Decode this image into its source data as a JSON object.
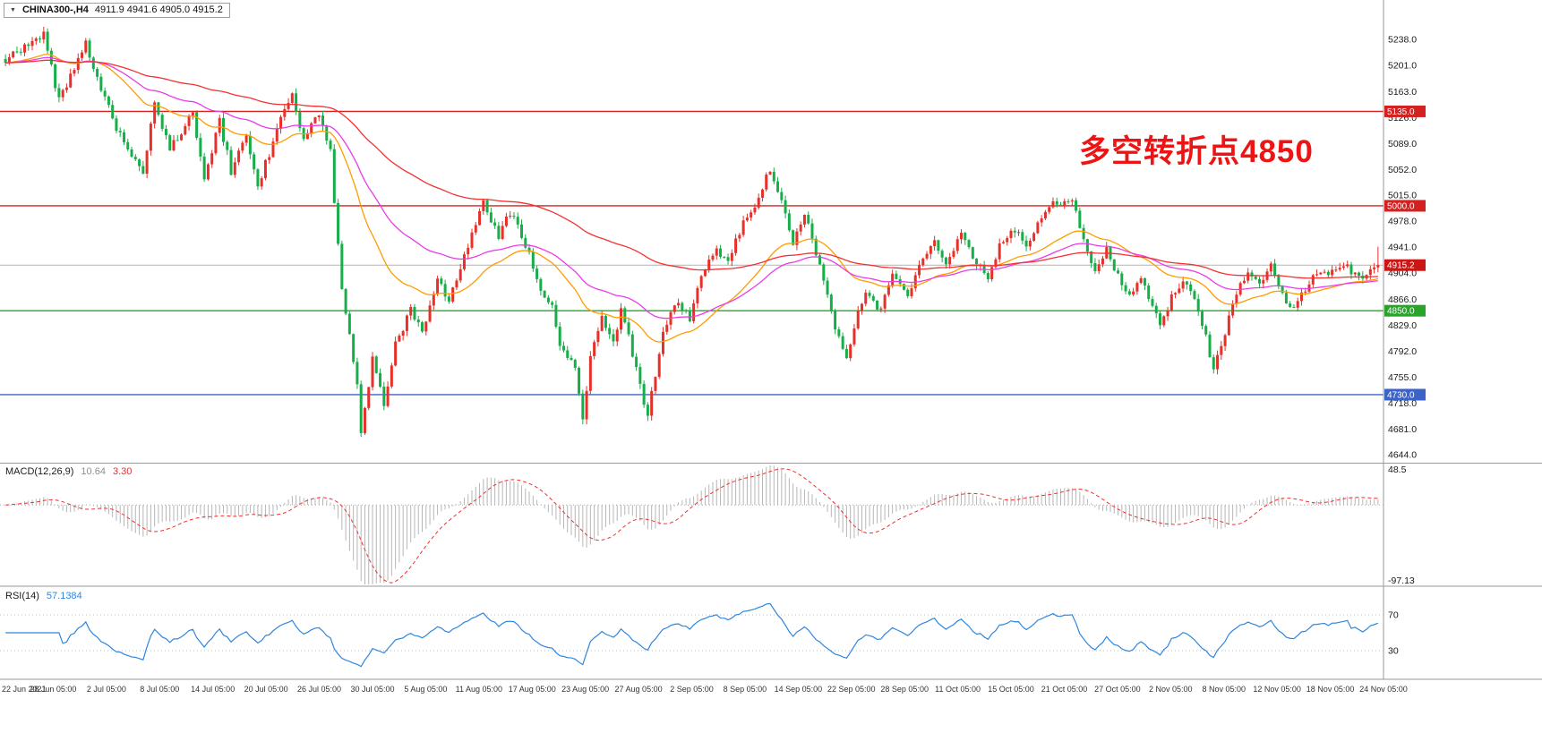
{
  "window": {
    "bg": "#ffffff"
  },
  "header": {
    "collapse_icon": "▼",
    "symbol": "CHINA300-,H4",
    "ohlc_text": "4911.9 4941.6 4905.0 4915.2"
  },
  "annotation": {
    "text": "多空转折点4850",
    "color": "#ee1414"
  },
  "price_axis": {
    "labels": [
      "5238.0",
      "5201.0",
      "5163.0",
      "5126.0",
      "5089.0",
      "5052.0",
      "5015.0",
      "4978.0",
      "4941.0",
      "4904.0",
      "4866.0",
      "4829.0",
      "4792.0",
      "4755.0",
      "4718.0",
      "4681.0",
      "4644.0"
    ],
    "top_value": 5284,
    "bottom_value": 4634
  },
  "time_axis": {
    "labels": [
      "22 Jun 2021",
      "28 Jun 05:00",
      "2 Jul 05:00",
      "8 Jul 05:00",
      "14 Jul 05:00",
      "20 Jul 05:00",
      "26 Jul 05:00",
      "30 Jul 05:00",
      "5 Aug 05:00",
      "11 Aug 05:00",
      "17 Aug 05:00",
      "23 Aug 05:00",
      "27 Aug 05:00",
      "2 Sep 05:00",
      "8 Sep 05:00",
      "14 Sep 05:00",
      "22 Sep 05:00",
      "28 Sep 05:00",
      "11 Oct 05:00",
      "15 Oct 05:00",
      "21 Oct 05:00",
      "27 Oct 05:00",
      "2 Nov 05:00",
      "8 Nov 05:00",
      "12 Nov 05:00",
      "18 Nov 05:00",
      "24 Nov 05:00"
    ]
  },
  "levels": [
    {
      "value": 5135.0,
      "label": "5135.0",
      "color": "#d32020"
    },
    {
      "value": 5000.0,
      "label": "5000.0",
      "color": "#d32020"
    },
    {
      "value": 4850.0,
      "label": "4850.0",
      "color": "#28a428"
    },
    {
      "value": 4730.0,
      "label": "4730.0",
      "color": "#3c64c8"
    }
  ],
  "current_price": {
    "value": 4915.2,
    "label": "4915.2",
    "line_color": "#b4b4b4",
    "tag_color": "#cc1616"
  },
  "chart_data": {
    "type": "candlestick",
    "symbol": "CHINA300-",
    "timeframe": "H4",
    "title": "CHINA300-,H4",
    "last_candle": {
      "open": 4911.9,
      "high": 4941.6,
      "low": 4905.0,
      "close": 4915.2
    },
    "candle_count": 360,
    "up_color": "#e8302a",
    "down_color": "#17ae49",
    "ylim": [
      4644.0,
      5238.0
    ],
    "price_path": [
      [
        0,
        5210
      ],
      [
        10,
        5245
      ],
      [
        14,
        5150
      ],
      [
        21,
        5230
      ],
      [
        27,
        5140
      ],
      [
        30,
        5100
      ],
      [
        36,
        5050
      ],
      [
        39,
        5150
      ],
      [
        43,
        5080
      ],
      [
        49,
        5135
      ],
      [
        52,
        5040
      ],
      [
        56,
        5120
      ],
      [
        59,
        5050
      ],
      [
        63,
        5100
      ],
      [
        66,
        5030
      ],
      [
        70,
        5090
      ],
      [
        72,
        5130
      ],
      [
        75,
        5155
      ],
      [
        78,
        5095
      ],
      [
        82,
        5130
      ],
      [
        85,
        5075
      ],
      [
        88,
        4880
      ],
      [
        92,
        4750
      ],
      [
        93,
        4680
      ],
      [
        96,
        4780
      ],
      [
        99,
        4720
      ],
      [
        102,
        4800
      ],
      [
        106,
        4850
      ],
      [
        109,
        4820
      ],
      [
        113,
        4895
      ],
      [
        116,
        4865
      ],
      [
        120,
        4930
      ],
      [
        123,
        4970
      ],
      [
        125,
        5010
      ],
      [
        129,
        4955
      ],
      [
        132,
        4990
      ],
      [
        136,
        4945
      ],
      [
        139,
        4895
      ],
      [
        143,
        4855
      ],
      [
        145,
        4805
      ],
      [
        149,
        4765
      ],
      [
        151,
        4695
      ],
      [
        153,
        4780
      ],
      [
        156,
        4840
      ],
      [
        159,
        4800
      ],
      [
        161,
        4850
      ],
      [
        164,
        4790
      ],
      [
        166,
        4740
      ],
      [
        168,
        4700
      ],
      [
        172,
        4820
      ],
      [
        175,
        4860
      ],
      [
        179,
        4840
      ],
      [
        182,
        4900
      ],
      [
        186,
        4940
      ],
      [
        189,
        4915
      ],
      [
        193,
        4980
      ],
      [
        196,
        5000
      ],
      [
        200,
        5055
      ],
      [
        203,
        5010
      ],
      [
        206,
        4945
      ],
      [
        209,
        4990
      ],
      [
        212,
        4930
      ],
      [
        215,
        4870
      ],
      [
        217,
        4820
      ],
      [
        220,
        4782
      ],
      [
        223,
        4850
      ],
      [
        225,
        4880
      ],
      [
        229,
        4850
      ],
      [
        232,
        4900
      ],
      [
        236,
        4868
      ],
      [
        239,
        4920
      ],
      [
        243,
        4950
      ],
      [
        246,
        4918
      ],
      [
        250,
        4958
      ],
      [
        253,
        4928
      ],
      [
        257,
        4898
      ],
      [
        260,
        4940
      ],
      [
        264,
        4968
      ],
      [
        267,
        4938
      ],
      [
        271,
        4988
      ],
      [
        274,
        5002
      ],
      [
        279,
        5010
      ],
      [
        282,
        4950
      ],
      [
        285,
        4908
      ],
      [
        288,
        4938
      ],
      [
        291,
        4898
      ],
      [
        294,
        4868
      ],
      [
        297,
        4898
      ],
      [
        300,
        4858
      ],
      [
        302,
        4828
      ],
      [
        305,
        4868
      ],
      [
        308,
        4898
      ],
      [
        311,
        4868
      ],
      [
        314,
        4818
      ],
      [
        316,
        4762
      ],
      [
        319,
        4820
      ],
      [
        322,
        4878
      ],
      [
        325,
        4908
      ],
      [
        328,
        4888
      ],
      [
        331,
        4918
      ],
      [
        333,
        4888
      ],
      [
        336,
        4850
      ],
      [
        339,
        4872
      ],
      [
        342,
        4898
      ],
      [
        345,
        4908
      ],
      [
        347,
        4905
      ],
      [
        350,
        4912
      ],
      [
        353,
        4906
      ],
      [
        356,
        4900
      ],
      [
        358,
        4911.9
      ],
      [
        359,
        4915.2
      ]
    ],
    "moving_averages": [
      {
        "name": "fast",
        "period": 34,
        "color": "#ff9c00"
      },
      {
        "name": "medium",
        "period": 60,
        "color": "#e93ce9"
      },
      {
        "name": "slow",
        "period": 130,
        "color": "#f53030"
      }
    ],
    "macd": {
      "label": "MACD(12,26,9)",
      "fast": 12,
      "slow": 26,
      "signal": 9,
      "main_value": "10.64",
      "signal_value": "3.30",
      "scale_max": 48.5,
      "scale_min": -97.13,
      "scale_labels": [
        "48.5",
        "-97.13"
      ],
      "histogram_color": "#b6b6b6",
      "signal_color": "#f03030"
    },
    "rsi": {
      "label": "RSI(14)",
      "period": 14,
      "value": "57.1384",
      "levels": [
        "70",
        "30"
      ],
      "level_values": [
        70,
        30
      ],
      "color": "#2e86de"
    }
  }
}
